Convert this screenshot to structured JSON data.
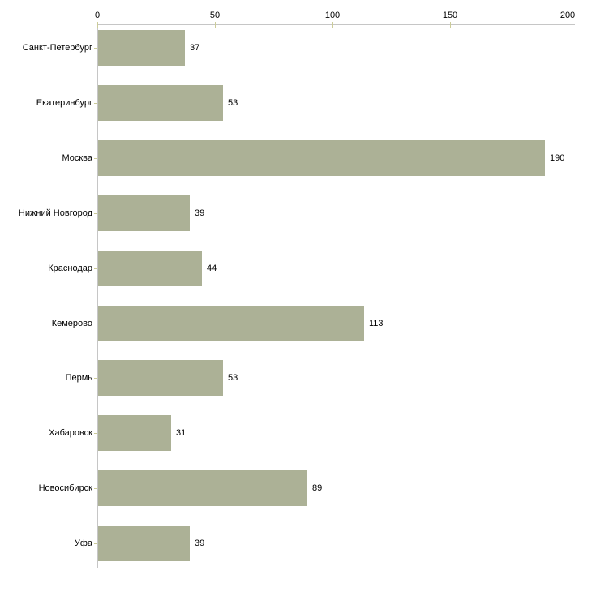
{
  "chart_data": {
    "type": "bar",
    "orientation": "horizontal",
    "categories": [
      "Санкт-Петербург",
      "Екатеринбург",
      "Москва",
      "Нижний Новгород",
      "Краснодар",
      "Кемерово",
      "Пермь",
      "Хабаровск",
      "Новосибирск",
      "Уфа"
    ],
    "values": [
      37,
      53,
      190,
      39,
      44,
      113,
      53,
      31,
      89,
      39
    ],
    "data_labels": [
      "37",
      "53",
      "190",
      "39",
      "44",
      "113",
      "53",
      "31",
      "89",
      "39"
    ],
    "xlim": [
      0,
      200
    ],
    "xticks": [
      0,
      50,
      100,
      150,
      200
    ],
    "xtick_labels": [
      "0",
      "50",
      "100",
      "150",
      "200"
    ],
    "axis_position": "top",
    "grid": false,
    "legend": false,
    "title": "",
    "xlabel": "",
    "ylabel": "",
    "colors": {
      "bar": "#acb196",
      "axis_line": "#c6c6c6",
      "tick_mark": "#cccc99",
      "text": "#000000",
      "background": "#ffffff"
    }
  }
}
